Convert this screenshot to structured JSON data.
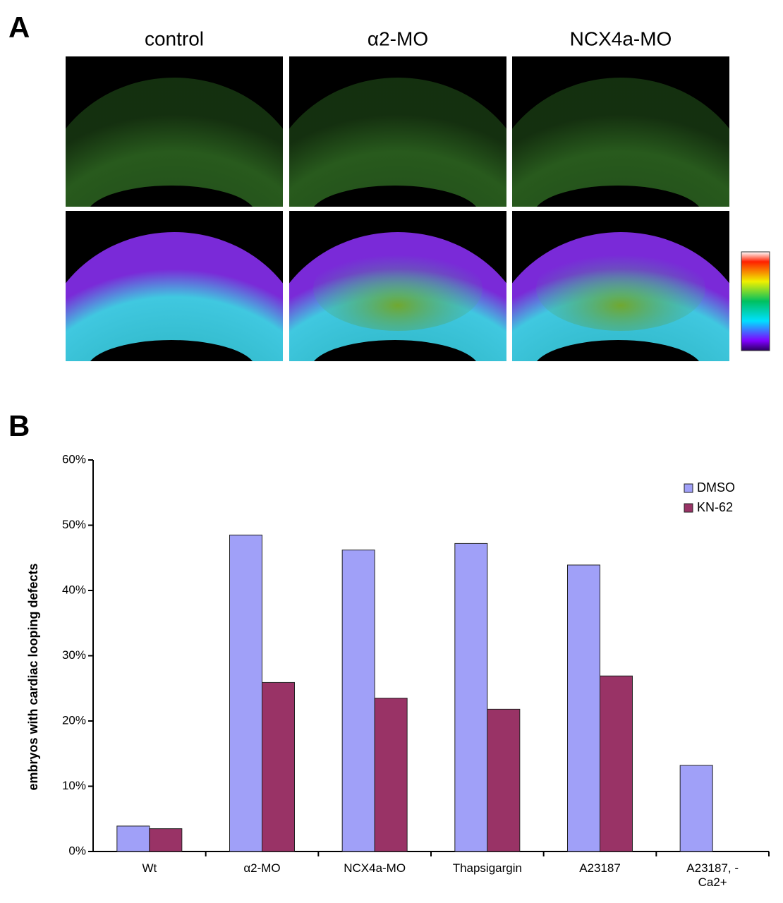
{
  "panel_a": {
    "label": "A",
    "columns": [
      "control",
      "α2-MO",
      "NCX4a-MO"
    ]
  },
  "panel_b_label": "B",
  "chart_data": {
    "type": "bar",
    "ylabel": "embryos with cardiac looping defects",
    "categories": [
      "Wt",
      "α2-MO",
      "NCX4a-MO",
      "Thapsigargin",
      "A23187",
      "A23187, - Ca2+"
    ],
    "series": [
      {
        "name": "DMSO",
        "color": "#a0a0f8",
        "values": [
          3.9,
          48.5,
          46.2,
          47.2,
          43.9,
          13.2
        ]
      },
      {
        "name": "KN-62",
        "color": "#993366",
        "values": [
          3.5,
          25.9,
          23.5,
          21.8,
          26.9,
          null
        ]
      }
    ],
    "ylim": [
      0,
      60
    ],
    "yticks": [
      {
        "value": 0,
        "label": "0%"
      },
      {
        "value": 10,
        "label": "10%"
      },
      {
        "value": 20,
        "label": "20%"
      },
      {
        "value": 30,
        "label": "30%"
      },
      {
        "value": 40,
        "label": "40%"
      },
      {
        "value": 50,
        "label": "50%"
      },
      {
        "value": 60,
        "label": "60%"
      }
    ],
    "legend": "upper right"
  }
}
